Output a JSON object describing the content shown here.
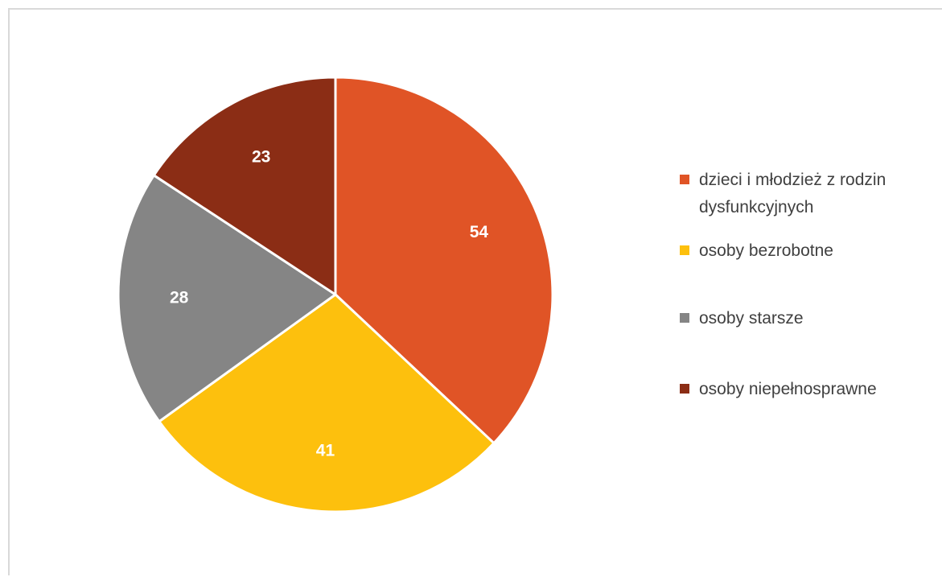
{
  "chart_data": {
    "type": "pie",
    "categories": [
      "dzieci i młodzież z rodzin dysfunkcyjnych",
      "osoby bezrobotne",
      "osoby starsze",
      "osoby niepełnosprawne"
    ],
    "values": [
      54,
      41,
      28,
      23
    ],
    "colors": [
      "#e05426",
      "#fdc00d",
      "#858585",
      "#8b2d15"
    ],
    "legend_position": "right",
    "data_labels": true,
    "start_angle": "top",
    "direction": "clockwise"
  }
}
